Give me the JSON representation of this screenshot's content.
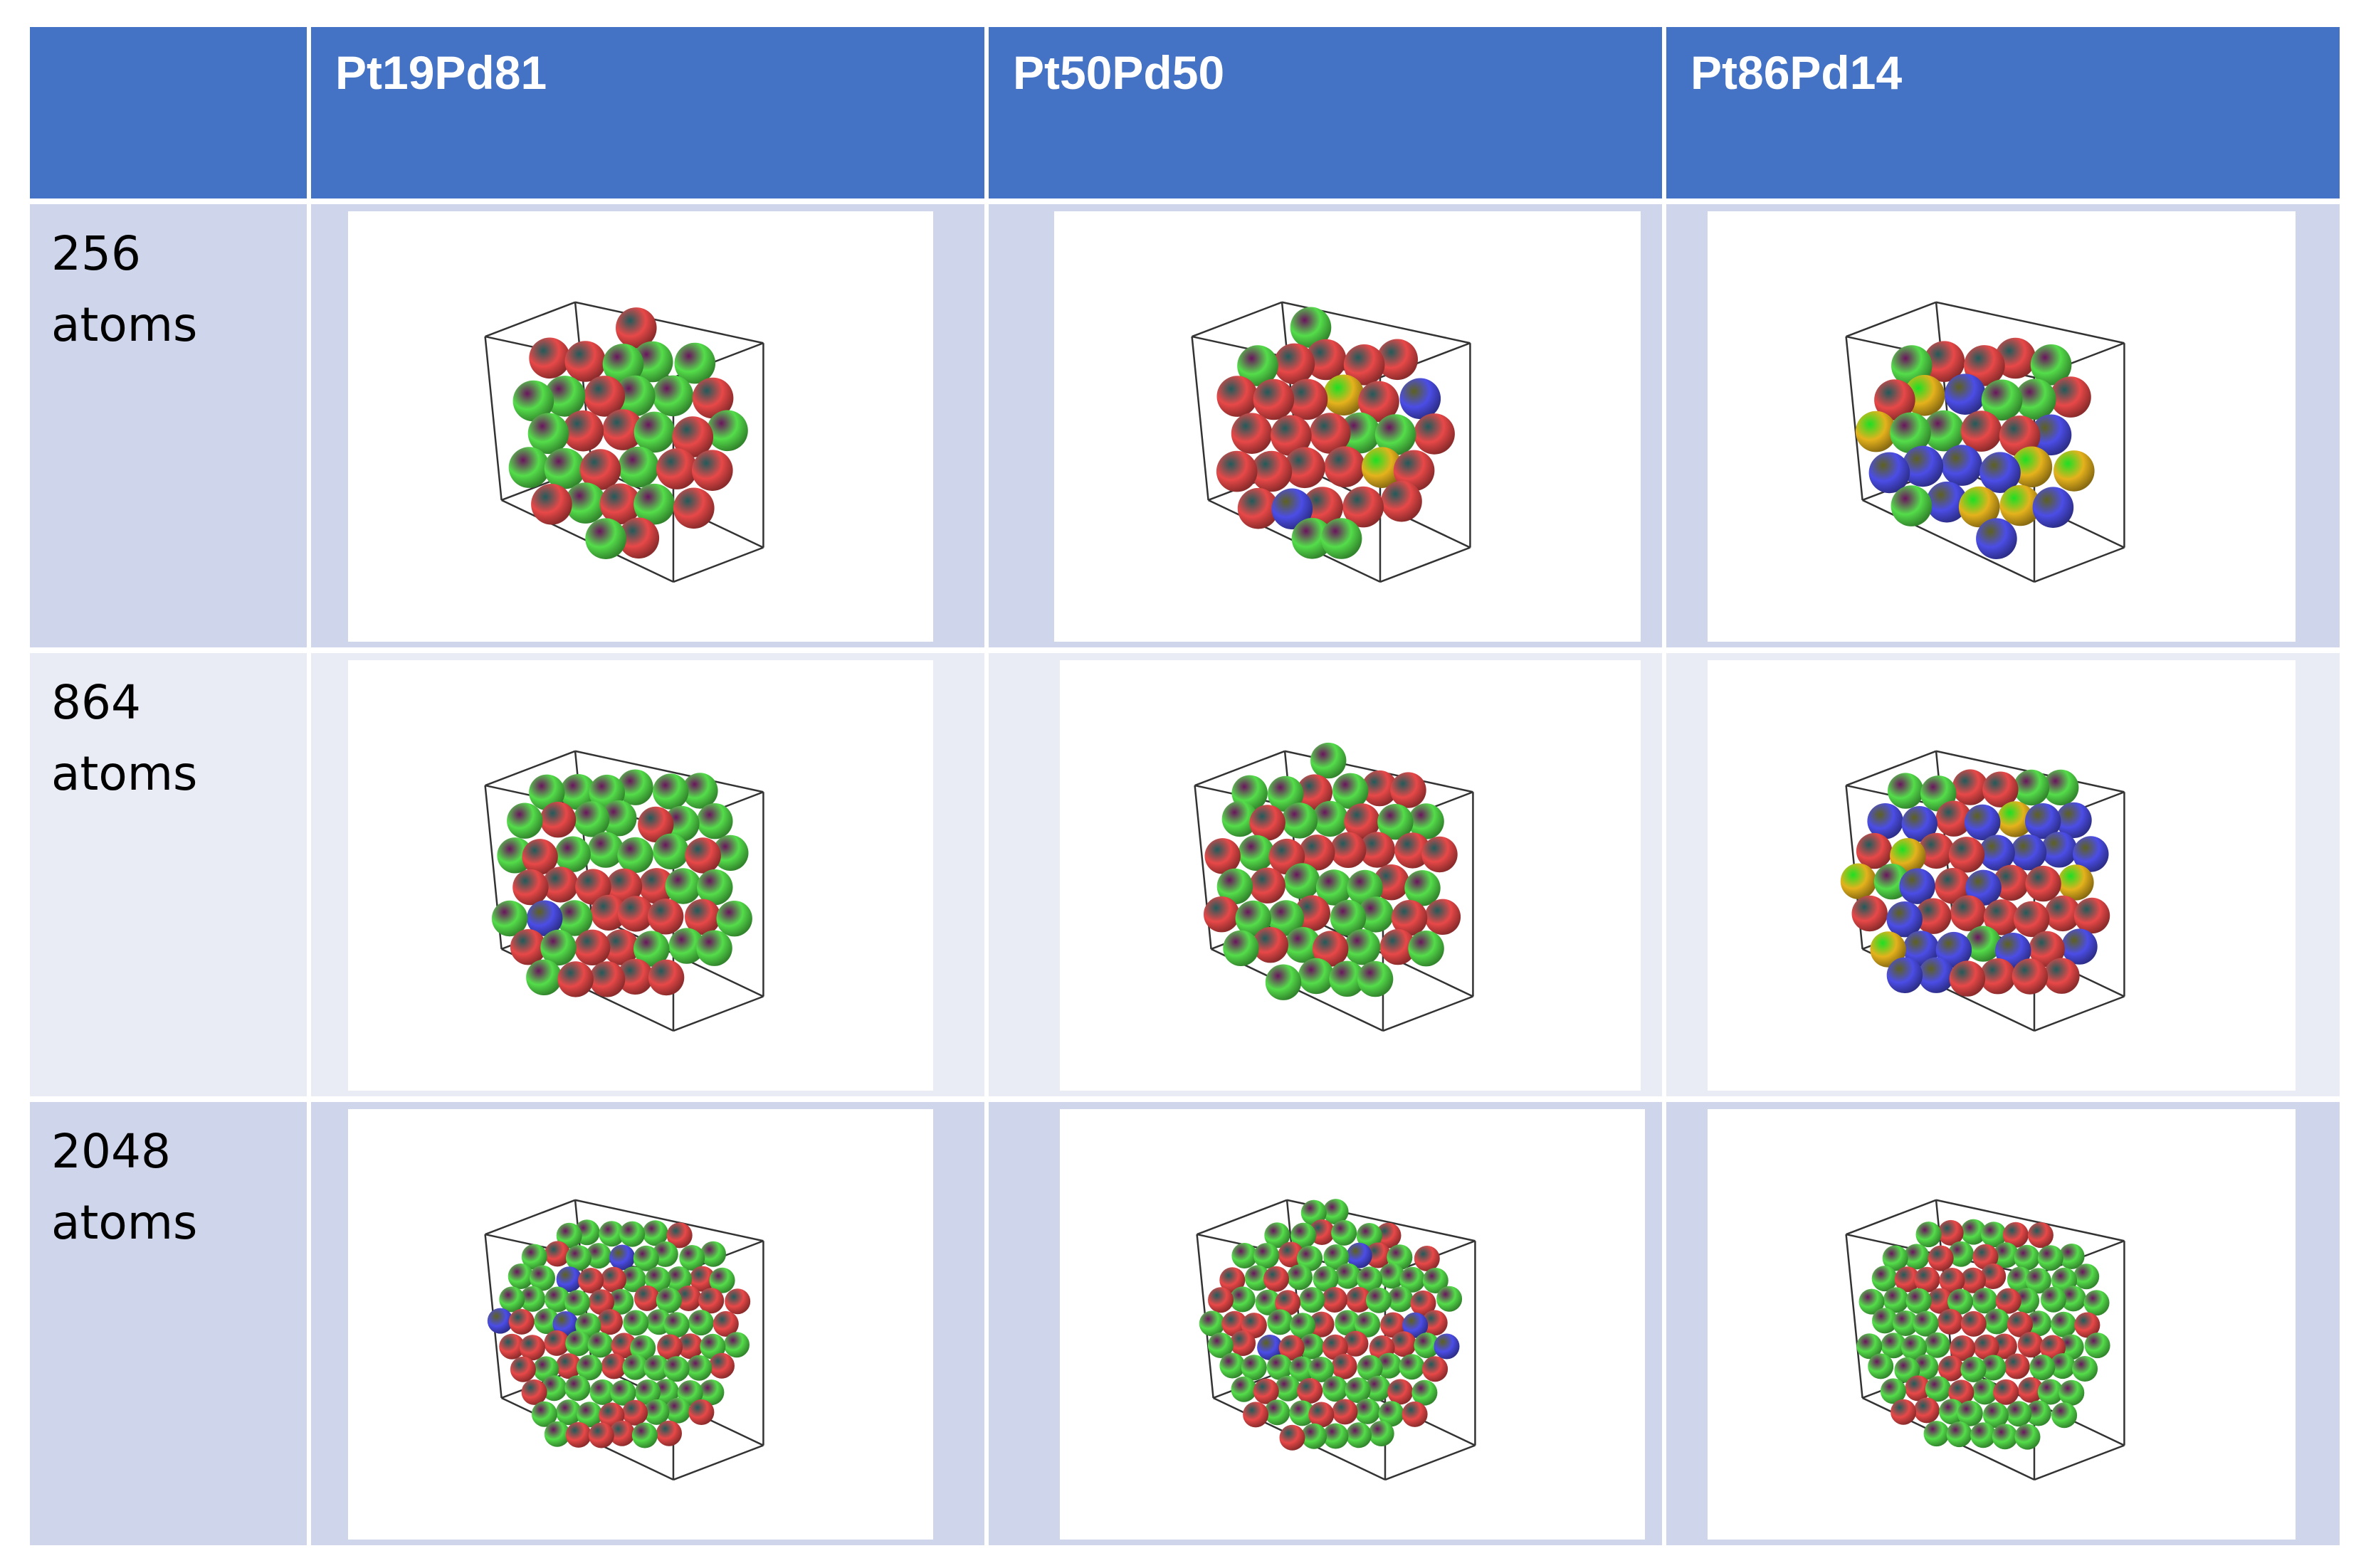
{
  "columns": [
    "Pt19Pd81",
    "Pt50Pd50",
    "Pt86Pd14"
  ],
  "rows": [
    {
      "label": "256\natoms"
    },
    {
      "label": "864\natoms"
    },
    {
      "label": "2048\natoms"
    }
  ],
  "atom_colors": {
    "red": "#e84848",
    "green": "#54dd4a",
    "blue": "#4b4de6",
    "gold": "#e5b21d"
  },
  "header_color": "#4472c4"
}
